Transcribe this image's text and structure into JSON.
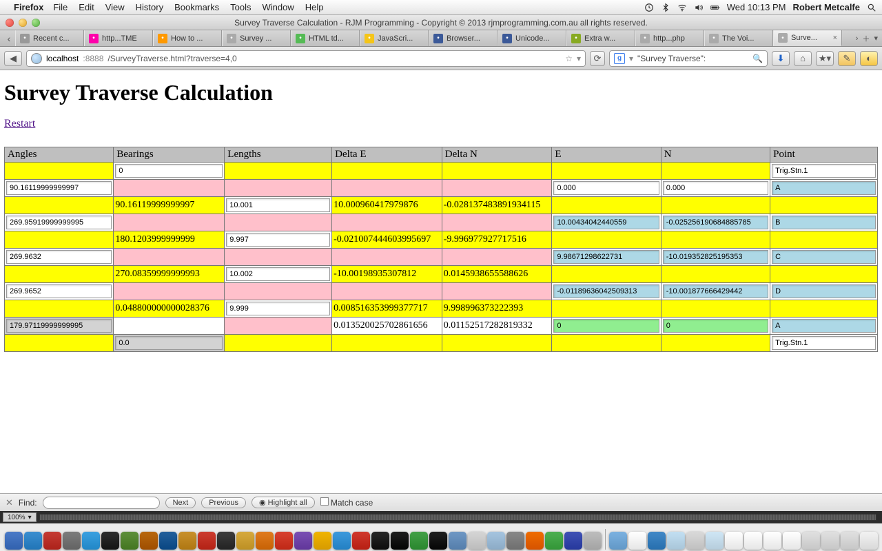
{
  "menubar": {
    "app": "Firefox",
    "items": [
      "File",
      "Edit",
      "View",
      "History",
      "Bookmarks",
      "Tools",
      "Window",
      "Help"
    ],
    "clock": "Wed 10:13 PM",
    "user": "Robert Metcalfe"
  },
  "window_title": "Survey Traverse Calculation - RJM Programming - Copyright © 2013 rjmprogramming.com.au all rights reserved.",
  "tabs": [
    {
      "label": "Recent c...",
      "active": false
    },
    {
      "label": "http...TME",
      "active": false
    },
    {
      "label": "How to ...",
      "active": false
    },
    {
      "label": "Survey ...",
      "active": false
    },
    {
      "label": "HTML td...",
      "active": false
    },
    {
      "label": "JavaScri...",
      "active": false
    },
    {
      "label": "Browser...",
      "active": false
    },
    {
      "label": "Unicode...",
      "active": false
    },
    {
      "label": "Extra w...",
      "active": false
    },
    {
      "label": "http...php",
      "active": false
    },
    {
      "label": "The Voi...",
      "active": false
    },
    {
      "label": "Surve...",
      "active": true
    }
  ],
  "url": {
    "host": "localhost",
    "port": ":8888",
    "path": "/SurveyTraverse.html?traverse=4,0"
  },
  "search": {
    "engine": "g",
    "query": "\"Survey Traverse\":"
  },
  "page": {
    "heading": "Survey Traverse Calculation",
    "restart_label": "Restart",
    "headers": [
      "Angles",
      "Bearings",
      "Lengths",
      "Delta E",
      "Delta N",
      "E",
      "N",
      "Point"
    ],
    "colwidths": [
      "12.5%",
      "12.5%",
      "12.5%",
      "12.5%",
      "12.5%",
      "12.5%",
      "12.5%",
      "12.5%"
    ]
  },
  "cells": {
    "r1_bearing": "0",
    "r1_point": "Trig.Stn.1",
    "r2_angle": "90.16119999999997",
    "r2_e": "0.000",
    "r2_n": "0.000",
    "r2_point": "A",
    "r3_bearing": "90.16119999999997",
    "r3_length": "10.001",
    "r3_de": "10.000960417979876",
    "r3_dn": "-0.028137483891934115",
    "r4_angle": "269.95919999999995",
    "r4_e": "10.00434042440559",
    "r4_n": "-0.025256190684885785",
    "r4_point": "B",
    "r5_bearing": "180.1203999999999",
    "r5_length": "9.997",
    "r5_de": "-0.021007444603995697",
    "r5_dn": "-9.996977927717516",
    "r6_angle": "269.9632",
    "r6_e": "9.98671298622731",
    "r6_n": "-10.019352825195353",
    "r6_point": "C",
    "r7_bearing": "270.08359999999993",
    "r7_length": "10.002",
    "r7_de": "-10.0019893530781​2",
    "r7_dn": "0.0145938655588626",
    "r8_angle": "269.9652",
    "r8_e": "-0.01189636042509313",
    "r8_n": "-10.001877666429442",
    "r8_point": "D",
    "r9_bearing": "0.048800000000028376",
    "r9_length": "9.999",
    "r9_de": "0.008516353999377717",
    "r9_dn": "9.998996373222393",
    "r10_angle": "179.97119999999995",
    "r10_de": "0.013520025702861656",
    "r10_dn": "0.01152517282819332",
    "r10_e": "0",
    "r10_n": "0",
    "r10_point": "A",
    "r11_bearing": "0.0",
    "r11_point": "Trig.Stn.1"
  },
  "findbar": {
    "label": "Find:",
    "next": "Next",
    "prev": "Previous",
    "highlight": "Highlight all",
    "match": "Match case"
  },
  "zoom": "100%",
  "dock_colors": [
    "#4a7ac7",
    "#3a8ed0",
    "#c53b33",
    "#7c7c7c",
    "#3aa0e0",
    "#2d2d2d",
    "#5d8f3a",
    "#b8670e",
    "#225f9b",
    "#c8902b",
    "#cc3b2e",
    "#3c3c3c",
    "#d6a93d",
    "#e07b1e",
    "#d8412f",
    "#7a4fb3",
    "#f0b400",
    "#3c99dc",
    "#d0382c",
    "#262626",
    "#1d1d1d",
    "#43a047",
    "#1f1f1f",
    "#6e97c4",
    "#d5d5d5",
    "#a5c4df",
    "#888888",
    "#ef6c00",
    "#4caf50",
    "#3f51b5",
    "#bdbdbd",
    "#7bb1e0",
    "#ffffff",
    "#4088c7",
    "#c2dff2",
    "#d9d9d9",
    "#cfe6f5",
    "#ffffff",
    "#ffffff",
    "#ffffff",
    "#ffffff",
    "#e0e0e0",
    "#e0e0e0",
    "#e0e0e0",
    "#f2f2f2"
  ]
}
